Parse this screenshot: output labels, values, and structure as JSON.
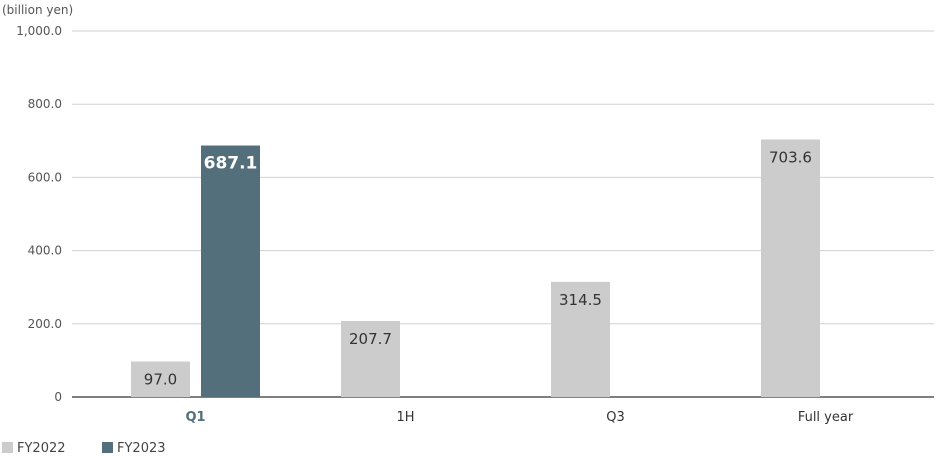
{
  "chart_data": {
    "type": "bar",
    "unit_label": "(billion yen)",
    "categories": [
      "Q1",
      "1H",
      "Q3",
      "Full year"
    ],
    "highlight_category": "Q1",
    "y_ticks": [
      "0",
      "200.0",
      "400.0",
      "600.0",
      "800.0",
      "1,000.0"
    ],
    "ylim": [
      0,
      1000
    ],
    "grid": true,
    "legend_position": "bottom-left",
    "series": [
      {
        "name": "FY2022",
        "color": "#cccccc",
        "values": [
          97.0,
          207.7,
          314.5,
          703.6
        ],
        "labels": [
          "97.0",
          "207.7",
          "314.5",
          "703.6"
        ]
      },
      {
        "name": "FY2023",
        "color": "#536f7c",
        "values": [
          687.1,
          null,
          null,
          null
        ],
        "labels": [
          "687.1",
          "",
          "",
          ""
        ]
      }
    ]
  }
}
